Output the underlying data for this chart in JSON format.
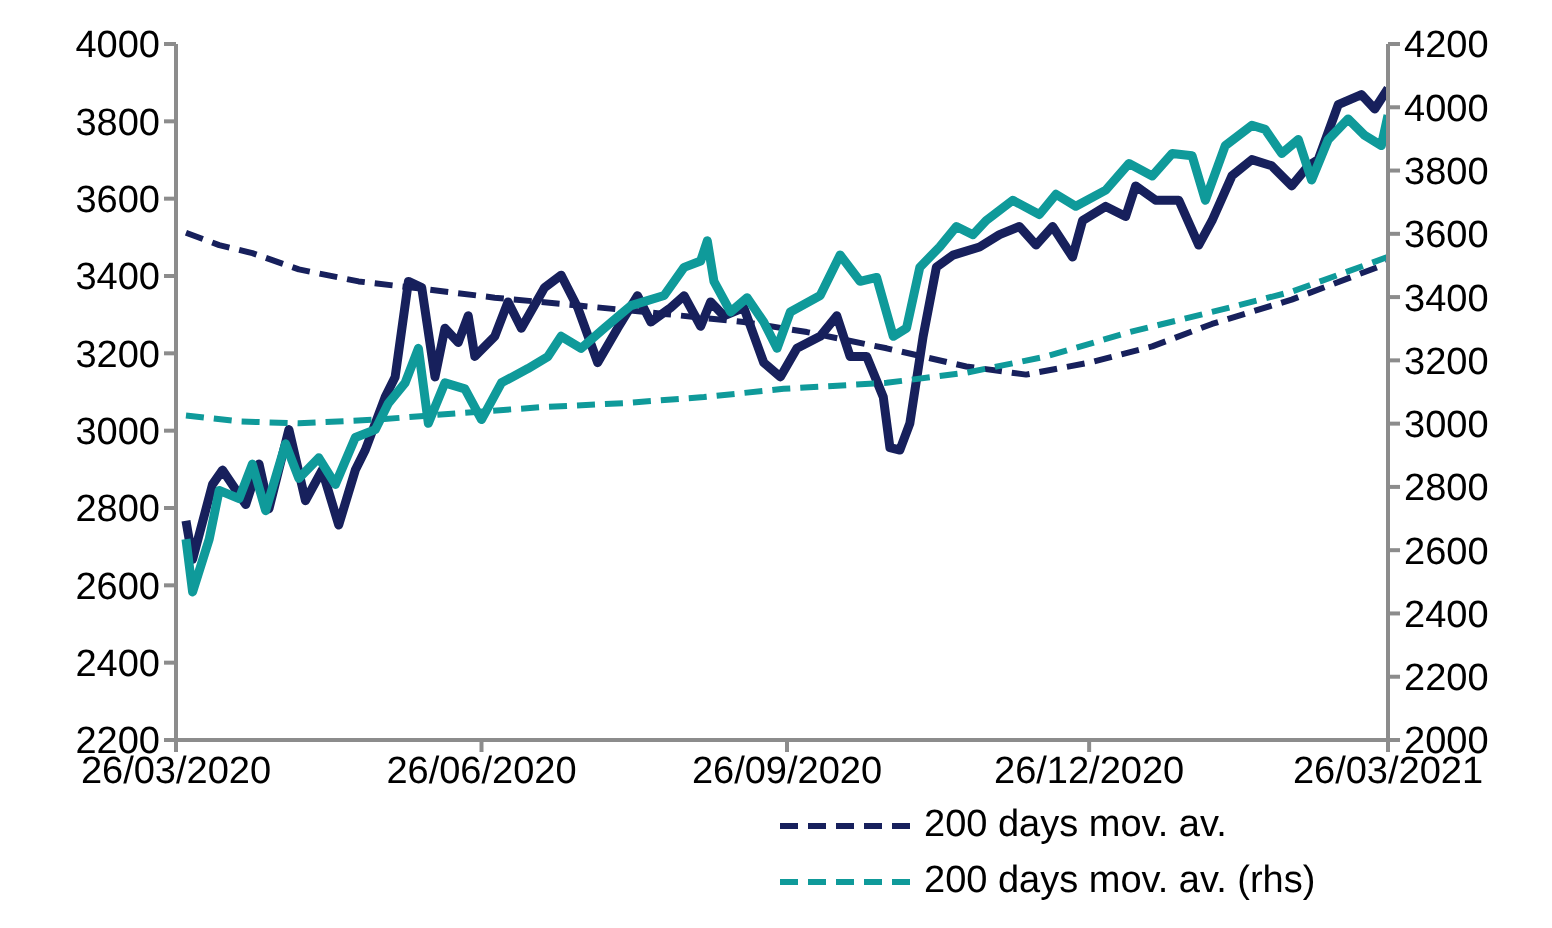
{
  "chart_data": {
    "type": "line",
    "xlim": [
      "2020-03-26",
      "2021-03-26"
    ],
    "xticks": [
      {
        "value": "2020-03-26",
        "label": "26/03/2020"
      },
      {
        "value": "2020-06-26",
        "label": "26/06/2020"
      },
      {
        "value": "2020-09-26",
        "label": "26/09/2020"
      },
      {
        "value": "2020-12-26",
        "label": "26/12/2020"
      },
      {
        "value": "2021-03-26",
        "label": "26/03/2021"
      }
    ],
    "ylim": [
      2200,
      4000
    ],
    "yticks": [
      2200,
      2400,
      2600,
      2800,
      3000,
      3200,
      3400,
      3600,
      3800,
      4000
    ],
    "y2lim": [
      2000,
      4200
    ],
    "y2ticks": [
      2000,
      2200,
      2400,
      2600,
      2800,
      3000,
      3200,
      3400,
      3600,
      3800,
      4000,
      4200
    ],
    "legend": "bottom",
    "series": [
      {
        "color": "#17205c",
        "line_style": "solid",
        "x": [
          "2020-03-29",
          "2020-03-31",
          "2020-04-06",
          "2020-04-09",
          "2020-04-16",
          "2020-04-20",
          "2020-04-23",
          "2020-04-29",
          "2020-05-04",
          "2020-05-09",
          "2020-05-14",
          "2020-05-19",
          "2020-05-22",
          "2020-05-28",
          "2020-05-31",
          "2020-06-04",
          "2020-06-08",
          "2020-06-12",
          "2020-06-15",
          "2020-06-19",
          "2020-06-22",
          "2020-06-24",
          "2020-06-30",
          "2020-07-04",
          "2020-07-08",
          "2020-07-15",
          "2020-07-20",
          "2020-07-25",
          "2020-07-31",
          "2020-08-06",
          "2020-08-12",
          "2020-08-16",
          "2020-08-22",
          "2020-08-26",
          "2020-08-31",
          "2020-09-03",
          "2020-09-07",
          "2020-09-13",
          "2020-09-19",
          "2020-09-24",
          "2020-09-29",
          "2020-10-06",
          "2020-10-11",
          "2020-10-15",
          "2020-10-20",
          "2020-10-25",
          "2020-10-27",
          "2020-10-30",
          "2020-11-02",
          "2020-11-06",
          "2020-11-10",
          "2020-11-15",
          "2020-11-23",
          "2020-11-29",
          "2020-12-05",
          "2020-12-10",
          "2020-12-15",
          "2020-12-21",
          "2020-12-24",
          "2020-12-31",
          "2021-01-06",
          "2021-01-09",
          "2021-01-15",
          "2021-01-22",
          "2021-01-28",
          "2021-02-01",
          "2021-02-07",
          "2021-02-13",
          "2021-02-19",
          "2021-02-25",
          "2021-03-02",
          "2021-03-05",
          "2021-03-11",
          "2021-03-18",
          "2021-03-22",
          "2021-03-26"
        ],
        "values": [
          2767,
          2667,
          2861,
          2898,
          2809,
          2914,
          2798,
          3003,
          2819,
          2898,
          2756,
          2898,
          2950,
          3087,
          3139,
          3386,
          3370,
          3139,
          3265,
          3228,
          3297,
          3192,
          3244,
          3333,
          3265,
          3370,
          3402,
          3318,
          3176,
          3265,
          3349,
          3281,
          3318,
          3349,
          3270,
          3333,
          3297,
          3318,
          3176,
          3139,
          3213,
          3244,
          3297,
          3192,
          3192,
          3087,
          2956,
          2950,
          3019,
          3244,
          3423,
          3454,
          3475,
          3507,
          3528,
          3480,
          3528,
          3449,
          3543,
          3580,
          3554,
          3633,
          3596,
          3596,
          3480,
          3543,
          3659,
          3701,
          3685,
          3633,
          3685,
          3701,
          3843,
          3869,
          3832,
          3885
        ]
      },
      {
        "name": "200 days mov. av.",
        "color": "#17205c",
        "line_style": "dashed",
        "x": [
          "2020-03-29",
          "2020-04-08",
          "2020-04-18",
          "2020-05-02",
          "2020-05-20",
          "2020-06-10",
          "2020-06-30",
          "2020-07-26",
          "2020-08-20",
          "2020-09-13",
          "2020-10-02",
          "2020-10-26",
          "2020-11-19",
          "2020-12-07",
          "2020-12-26",
          "2021-01-14",
          "2021-02-01",
          "2021-02-25",
          "2021-03-26"
        ],
        "values": [
          3512,
          3480,
          3459,
          3417,
          3386,
          3365,
          3344,
          3323,
          3302,
          3281,
          3255,
          3213,
          3166,
          3145,
          3176,
          3218,
          3276,
          3339,
          3433
        ]
      },
      {
        "color": "#0f9a9a",
        "line_style": "solid",
        "axis": "y2",
        "x": [
          "2020-03-29",
          "2020-03-31",
          "2020-04-05",
          "2020-04-08",
          "2020-04-14",
          "2020-04-18",
          "2020-04-22",
          "2020-04-28",
          "2020-05-02",
          "2020-05-08",
          "2020-05-13",
          "2020-05-19",
          "2020-05-25",
          "2020-05-29",
          "2020-06-03",
          "2020-06-07",
          "2020-06-10",
          "2020-06-15",
          "2020-06-21",
          "2020-06-26",
          "2020-07-02",
          "2020-07-10",
          "2020-07-16",
          "2020-07-20",
          "2020-07-26",
          "2020-08-02",
          "2020-08-10",
          "2020-08-20",
          "2020-08-26",
          "2020-08-31",
          "2020-09-02",
          "2020-09-04",
          "2020-09-09",
          "2020-09-14",
          "2020-09-19",
          "2020-09-23",
          "2020-09-27",
          "2020-10-06",
          "2020-10-12",
          "2020-10-18",
          "2020-10-23",
          "2020-10-28",
          "2020-11-01",
          "2020-11-05",
          "2020-11-11",
          "2020-11-16",
          "2020-11-21",
          "2020-11-25",
          "2020-12-03",
          "2020-12-11",
          "2020-12-16",
          "2020-12-22",
          "2020-12-31",
          "2021-01-07",
          "2021-01-14",
          "2021-01-20",
          "2021-01-26",
          "2021-01-30",
          "2021-02-05",
          "2021-02-13",
          "2021-02-17",
          "2021-02-22",
          "2021-02-27",
          "2021-03-03",
          "2021-03-08",
          "2021-03-14",
          "2021-03-19",
          "2021-03-24",
          "2021-03-26"
        ],
        "values": [
          2635,
          2468,
          2635,
          2789,
          2763,
          2872,
          2725,
          2936,
          2827,
          2892,
          2808,
          2956,
          2981,
          3065,
          3129,
          3238,
          3001,
          3129,
          3110,
          3013,
          3129,
          3174,
          3212,
          3276,
          3238,
          3302,
          3373,
          3405,
          3494,
          3514,
          3578,
          3450,
          3353,
          3398,
          3321,
          3238,
          3353,
          3405,
          3533,
          3450,
          3462,
          3276,
          3302,
          3494,
          3559,
          3623,
          3597,
          3642,
          3706,
          3661,
          3725,
          3687,
          3738,
          3822,
          3783,
          3854,
          3847,
          3706,
          3879,
          3943,
          3930,
          3854,
          3898,
          3770,
          3898,
          3963,
          3911,
          3879,
          3975
        ]
      },
      {
        "name": "200 days mov. av. (rhs)",
        "color": "#0f9a9a",
        "line_style": "dashed",
        "axis": "y2",
        "x": [
          "2020-03-29",
          "2020-04-14",
          "2020-05-02",
          "2020-05-26",
          "2020-06-19",
          "2020-07-14",
          "2020-08-08",
          "2020-09-01",
          "2020-09-25",
          "2020-10-26",
          "2020-11-19",
          "2020-12-13",
          "2021-01-07",
          "2021-02-01",
          "2021-02-25",
          "2021-03-26"
        ],
        "values": [
          3026,
          3007,
          3001,
          3013,
          3033,
          3052,
          3065,
          3084,
          3110,
          3129,
          3161,
          3212,
          3289,
          3353,
          3417,
          3527
        ]
      }
    ]
  }
}
